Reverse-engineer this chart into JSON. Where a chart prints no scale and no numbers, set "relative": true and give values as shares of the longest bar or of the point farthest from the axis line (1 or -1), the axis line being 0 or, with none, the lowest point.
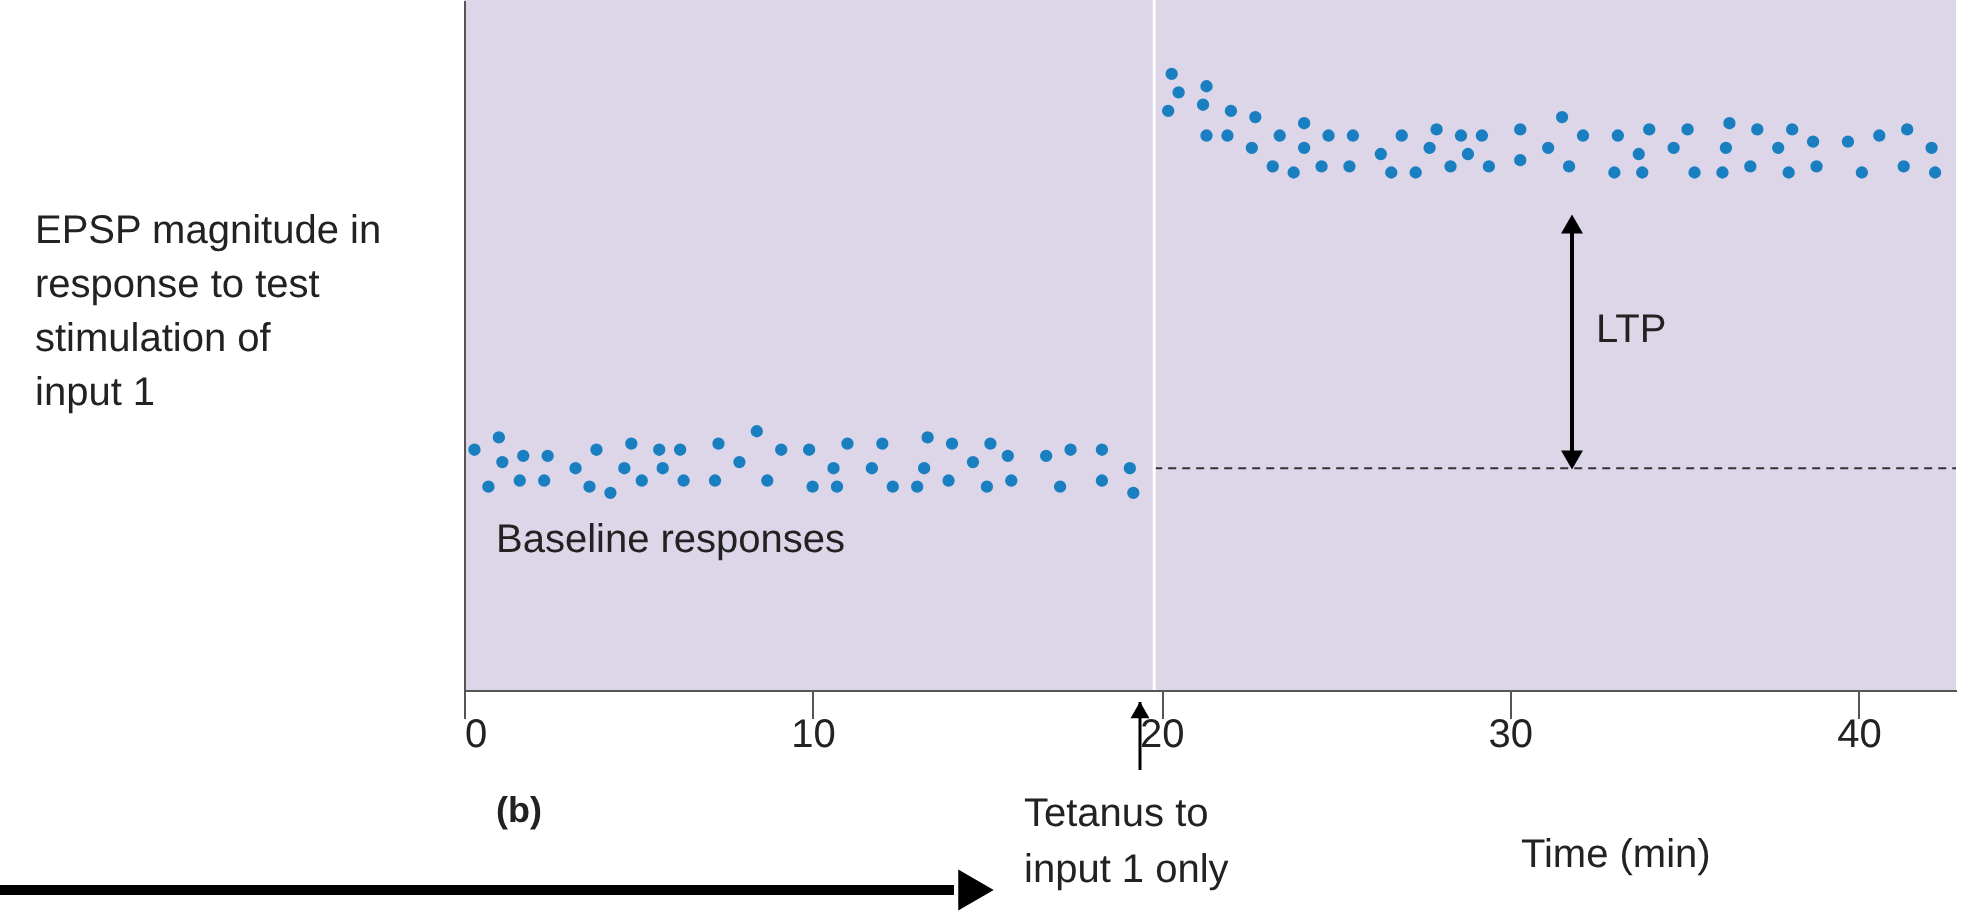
{
  "chart_data": {
    "type": "scatter",
    "relative": true,
    "xlabel": "Time (min)",
    "ylabel": "EPSP magnitude in response to test stimulation of input 1",
    "xlim": [
      0,
      42.8
    ],
    "xticks": [
      0,
      10,
      20,
      30,
      40
    ],
    "grid": false,
    "marker": "circle",
    "series": [
      {
        "color": "#1a7fc1",
        "x": [
          0.3,
          0.7,
          1.0,
          1.1,
          1.7,
          1.6,
          2.4,
          2.3,
          3.2,
          3.6,
          3.8,
          4.2,
          4.6,
          4.8,
          5.1,
          5.6,
          5.7,
          6.2,
          6.3,
          7.2,
          7.3,
          7.9,
          8.4,
          8.7,
          9.1,
          9.9,
          10.0,
          10.6,
          10.7,
          11.0,
          11.7,
          12.0,
          12.3,
          13.0,
          13.2,
          13.3,
          13.9,
          14.0,
          14.6,
          15.0,
          15.1,
          15.6,
          15.7,
          16.7,
          17.1,
          17.4,
          18.3,
          18.3,
          19.1,
          19.2,
          20.3,
          20.5,
          20.2,
          21.3,
          21.2,
          21.3,
          22.0,
          21.9,
          22.7,
          22.6,
          23.2,
          23.4,
          23.8,
          24.1,
          24.1,
          24.6,
          24.8,
          25.4,
          25.5,
          26.3,
          26.6,
          26.9,
          27.3,
          27.7,
          27.9,
          28.3,
          28.6,
          28.8,
          29.2,
          29.4,
          30.3,
          30.3,
          31.1,
          31.5,
          31.7,
          32.1,
          33.0,
          33.1,
          33.7,
          33.8,
          34.0,
          34.7,
          35.1,
          35.3,
          36.1,
          36.2,
          36.3,
          36.9,
          37.1,
          37.7,
          38.0,
          38.1,
          38.8,
          38.7,
          39.7,
          40.1,
          40.6,
          41.3,
          41.4,
          42.1,
          42.2
        ],
        "values": [
          0.39,
          0.33,
          0.41,
          0.37,
          0.38,
          0.34,
          0.38,
          0.34,
          0.36,
          0.33,
          0.39,
          0.32,
          0.36,
          0.4,
          0.34,
          0.39,
          0.36,
          0.39,
          0.34,
          0.34,
          0.4,
          0.37,
          0.42,
          0.34,
          0.39,
          0.39,
          0.33,
          0.36,
          0.33,
          0.4,
          0.36,
          0.4,
          0.33,
          0.33,
          0.36,
          0.41,
          0.34,
          0.4,
          0.37,
          0.33,
          0.4,
          0.38,
          0.34,
          0.38,
          0.33,
          0.39,
          0.34,
          0.39,
          0.36,
          0.32,
          1.0,
          0.97,
          0.94,
          0.98,
          0.95,
          0.9,
          0.94,
          0.9,
          0.93,
          0.88,
          0.85,
          0.9,
          0.84,
          0.92,
          0.88,
          0.85,
          0.9,
          0.85,
          0.9,
          0.87,
          0.84,
          0.9,
          0.84,
          0.88,
          0.91,
          0.85,
          0.9,
          0.87,
          0.9,
          0.85,
          0.91,
          0.86,
          0.88,
          0.93,
          0.85,
          0.9,
          0.84,
          0.9,
          0.87,
          0.84,
          0.91,
          0.88,
          0.91,
          0.84,
          0.84,
          0.88,
          0.92,
          0.85,
          0.91,
          0.88,
          0.84,
          0.91,
          0.85,
          0.89,
          0.89,
          0.84,
          0.9,
          0.85,
          0.91,
          0.88,
          0.84
        ]
      }
    ],
    "ref_lines": [
      {
        "axis": "x",
        "value": 19.8,
        "color": "#ffffff",
        "line_style": "solid"
      },
      {
        "axis": "y",
        "value": 0.36,
        "color": "#333333",
        "line_style": "dashed"
      }
    ],
    "annotations": [
      "Baseline responses",
      "LTP",
      "Tetanus to input 1 only",
      "(b)"
    ]
  }
}
